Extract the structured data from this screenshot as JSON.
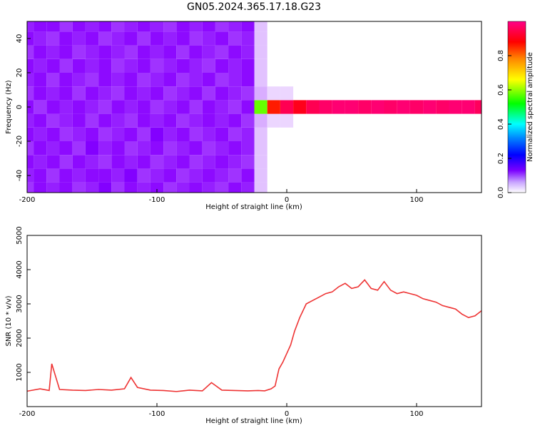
{
  "title": "GN05.2024.365.17.18.G23",
  "chart_data": [
    {
      "type": "heatmap",
      "xlabel": "Height of straight line (km)",
      "ylabel": "Frequency (Hz)",
      "xlim": [
        -200,
        150
      ],
      "ylim": [
        -50,
        50
      ],
      "xticks": [
        -200,
        -100,
        0,
        100
      ],
      "yticks": [
        -40,
        -20,
        0,
        20,
        40
      ],
      "x_grid": [
        -200,
        -190,
        -180,
        -170,
        -160,
        -150,
        -140,
        -130,
        -120,
        -110,
        -100,
        -90,
        -80,
        -70,
        -60,
        -50,
        -40,
        -30,
        -20,
        -10,
        0,
        10,
        20,
        30,
        40,
        50,
        60,
        70,
        80,
        90,
        100,
        110,
        120,
        130,
        140,
        150
      ],
      "y_grid": [
        -48,
        -40,
        -32,
        -24,
        -16,
        -8,
        0,
        8,
        16,
        24,
        32,
        40,
        48
      ],
      "amplitude": [
        [
          0.1,
          0.12,
          0.11,
          0.12,
          0.1,
          0.11,
          0.13,
          0.1,
          0.12,
          0.11,
          0.12,
          0.1,
          0.11,
          0.12,
          0.11,
          0.1,
          0.12,
          0.11,
          0.03,
          0.0,
          0.0,
          0.0,
          0.0,
          0.0,
          0.0,
          0.0,
          0.0,
          0.0,
          0.0,
          0.0,
          0.0,
          0.0,
          0.0,
          0.0,
          0.0,
          0.0
        ],
        [
          0.11,
          0.12,
          0.1,
          0.12,
          0.11,
          0.12,
          0.12,
          0.11,
          0.13,
          0.1,
          0.11,
          0.12,
          0.1,
          0.11,
          0.12,
          0.11,
          0.1,
          0.12,
          0.03,
          0.0,
          0.0,
          0.0,
          0.0,
          0.0,
          0.0,
          0.0,
          0.0,
          0.0,
          0.0,
          0.0,
          0.0,
          0.0,
          0.0,
          0.0,
          0.0,
          0.0
        ],
        [
          0.12,
          0.11,
          0.12,
          0.1,
          0.12,
          0.11,
          0.1,
          0.12,
          0.11,
          0.12,
          0.1,
          0.11,
          0.12,
          0.1,
          0.11,
          0.12,
          0.11,
          0.1,
          0.03,
          0.0,
          0.0,
          0.0,
          0.0,
          0.0,
          0.0,
          0.0,
          0.0,
          0.0,
          0.0,
          0.0,
          0.0,
          0.0,
          0.0,
          0.0,
          0.0,
          0.0
        ],
        [
          0.1,
          0.12,
          0.11,
          0.12,
          0.1,
          0.13,
          0.11,
          0.12,
          0.1,
          0.11,
          0.12,
          0.1,
          0.11,
          0.12,
          0.1,
          0.11,
          0.12,
          0.11,
          0.03,
          0.0,
          0.0,
          0.0,
          0.0,
          0.0,
          0.0,
          0.0,
          0.0,
          0.0,
          0.0,
          0.0,
          0.0,
          0.0,
          0.0,
          0.0,
          0.0,
          0.0
        ],
        [
          0.12,
          0.11,
          0.12,
          0.1,
          0.11,
          0.12,
          0.1,
          0.11,
          0.12,
          0.1,
          0.13,
          0.11,
          0.12,
          0.1,
          0.11,
          0.12,
          0.1,
          0.11,
          0.03,
          0.0,
          0.0,
          0.0,
          0.0,
          0.0,
          0.0,
          0.0,
          0.0,
          0.0,
          0.0,
          0.0,
          0.0,
          0.0,
          0.0,
          0.0,
          0.0,
          0.0
        ],
        [
          0.11,
          0.12,
          0.1,
          0.11,
          0.12,
          0.1,
          0.12,
          0.11,
          0.1,
          0.12,
          0.11,
          0.12,
          0.1,
          0.11,
          0.12,
          0.11,
          0.12,
          0.1,
          0.04,
          0.02,
          0.02,
          0.0,
          0.0,
          0.0,
          0.0,
          0.0,
          0.0,
          0.0,
          0.0,
          0.0,
          0.0,
          0.0,
          0.0,
          0.0,
          0.0,
          0.0
        ],
        [
          0.12,
          0.1,
          0.12,
          0.11,
          0.12,
          0.11,
          0.1,
          0.12,
          0.11,
          0.12,
          0.1,
          0.11,
          0.12,
          0.1,
          0.12,
          0.11,
          0.1,
          0.12,
          0.55,
          0.85,
          0.95,
          0.9,
          0.95,
          0.97,
          0.98,
          0.98,
          0.97,
          0.98,
          0.97,
          0.98,
          0.97,
          0.98,
          0.97,
          0.98,
          0.98,
          0.96
        ],
        [
          0.1,
          0.12,
          0.11,
          0.12,
          0.1,
          0.12,
          0.11,
          0.1,
          0.12,
          0.11,
          0.12,
          0.1,
          0.11,
          0.12,
          0.1,
          0.12,
          0.11,
          0.1,
          0.04,
          0.02,
          0.02,
          0.0,
          0.0,
          0.0,
          0.0,
          0.0,
          0.0,
          0.0,
          0.0,
          0.0,
          0.0,
          0.0,
          0.0,
          0.0,
          0.0,
          0.0
        ],
        [
          0.11,
          0.12,
          0.1,
          0.12,
          0.11,
          0.1,
          0.12,
          0.11,
          0.12,
          0.1,
          0.11,
          0.12,
          0.1,
          0.11,
          0.12,
          0.1,
          0.11,
          0.12,
          0.03,
          0.0,
          0.0,
          0.0,
          0.0,
          0.0,
          0.0,
          0.0,
          0.0,
          0.0,
          0.0,
          0.0,
          0.0,
          0.0,
          0.0,
          0.0,
          0.0,
          0.0
        ],
        [
          0.12,
          0.11,
          0.12,
          0.1,
          0.12,
          0.11,
          0.12,
          0.1,
          0.11,
          0.12,
          0.1,
          0.11,
          0.12,
          0.11,
          0.1,
          0.12,
          0.11,
          0.12,
          0.03,
          0.0,
          0.0,
          0.0,
          0.0,
          0.0,
          0.0,
          0.0,
          0.0,
          0.0,
          0.0,
          0.0,
          0.0,
          0.0,
          0.0,
          0.0,
          0.0,
          0.0
        ],
        [
          0.1,
          0.12,
          0.11,
          0.12,
          0.1,
          0.11,
          0.12,
          0.11,
          0.1,
          0.12,
          0.11,
          0.12,
          0.1,
          0.12,
          0.11,
          0.1,
          0.12,
          0.11,
          0.03,
          0.0,
          0.0,
          0.0,
          0.0,
          0.0,
          0.0,
          0.0,
          0.0,
          0.0,
          0.0,
          0.0,
          0.0,
          0.0,
          0.0,
          0.0,
          0.0,
          0.0
        ],
        [
          0.12,
          0.11,
          0.1,
          0.12,
          0.11,
          0.12,
          0.1,
          0.11,
          0.12,
          0.1,
          0.12,
          0.11,
          0.12,
          0.1,
          0.11,
          0.12,
          0.1,
          0.11,
          0.03,
          0.0,
          0.0,
          0.0,
          0.0,
          0.0,
          0.0,
          0.0,
          0.0,
          0.0,
          0.0,
          0.0,
          0.0,
          0.0,
          0.0,
          0.0,
          0.0,
          0.0
        ],
        [
          0.11,
          0.12,
          0.12,
          0.1,
          0.12,
          0.11,
          0.12,
          0.1,
          0.11,
          0.12,
          0.11,
          0.1,
          0.12,
          0.11,
          0.12,
          0.1,
          0.11,
          0.12,
          0.03,
          0.0,
          0.0,
          0.0,
          0.0,
          0.0,
          0.0,
          0.0,
          0.0,
          0.0,
          0.0,
          0.0,
          0.0,
          0.0,
          0.0,
          0.0,
          0.0,
          0.0
        ]
      ],
      "colorbar": {
        "label": "Normalized spectral amplitude",
        "range": [
          0,
          1
        ],
        "ticks": [
          "0.0",
          "0.2",
          "0.4",
          "0.6",
          "0.8"
        ],
        "colors": [
          "#ffffff",
          "#8800ff",
          "#0000ff",
          "#00ffff",
          "#00ff00",
          "#ffff00",
          "#ff8800",
          "#ff0000",
          "#ff0088"
        ]
      },
      "grid": false
    },
    {
      "type": "line",
      "xlabel": "Height of straight line (km)",
      "ylabel": "SNR (10 * v/v)",
      "xlim": [
        -200,
        150
      ],
      "ylim": [
        0,
        5000
      ],
      "xticks": [
        -200,
        -100,
        0,
        100
      ],
      "yticks": [
        1000,
        2000,
        3000,
        4000,
        5000
      ],
      "series": [
        {
          "color": "#ee3333",
          "x": [
            -200,
            -190,
            -183,
            -181,
            -175,
            -165,
            -155,
            -145,
            -135,
            -125,
            -120,
            -115,
            -105,
            -95,
            -85,
            -75,
            -65,
            -58,
            -50,
            -40,
            -30,
            -22,
            -17,
            -12,
            -9,
            -6,
            -3,
            0,
            3,
            6,
            10,
            15,
            20,
            25,
            30,
            35,
            40,
            45,
            50,
            55,
            60,
            65,
            70,
            75,
            80,
            85,
            90,
            95,
            100,
            105,
            110,
            115,
            120,
            125,
            130,
            135,
            140,
            145,
            150
          ],
          "y": [
            450,
            520,
            470,
            1250,
            500,
            480,
            470,
            500,
            480,
            520,
            850,
            560,
            480,
            470,
            440,
            480,
            460,
            700,
            480,
            470,
            460,
            470,
            460,
            520,
            600,
            1100,
            1300,
            1550,
            1800,
            2200,
            2600,
            3000,
            3100,
            3200,
            3300,
            3350,
            3500,
            3600,
            3450,
            3500,
            3700,
            3450,
            3400,
            3650,
            3400,
            3300,
            3350,
            3300,
            3250,
            3150,
            3100,
            3050,
            2950,
            2900,
            2850,
            2700,
            2600,
            2650,
            2800
          ]
        }
      ],
      "grid": false
    }
  ]
}
